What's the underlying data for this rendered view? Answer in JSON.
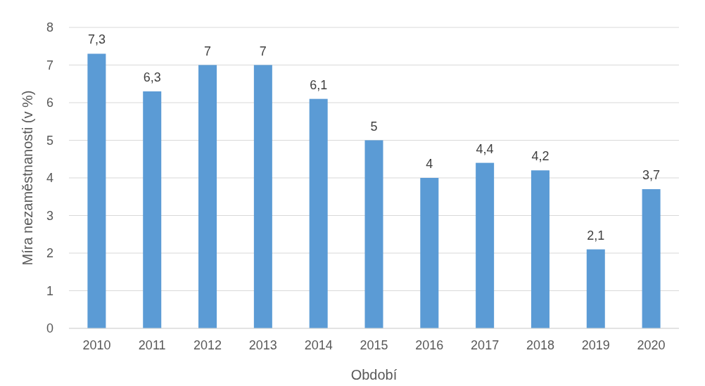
{
  "chart_data": {
    "type": "bar",
    "xlabel": "Období",
    "ylabel": "Míra nezaměstnanosti (v %)",
    "categories": [
      "2010",
      "2011",
      "2012",
      "2013",
      "2014",
      "2015",
      "2016",
      "2017",
      "2018",
      "2019",
      "2020"
    ],
    "values": [
      7.3,
      6.3,
      7,
      7,
      6.1,
      5,
      4,
      4.4,
      4.2,
      2.1,
      3.7
    ],
    "value_labels": [
      "7,3",
      "6,3",
      "7",
      "7",
      "6,1",
      "5",
      "4",
      "4,4",
      "4,2",
      "2,1",
      "3,7"
    ],
    "color": "#5b9bd5",
    "ylim": [
      0,
      8
    ],
    "yticks": [
      0,
      1,
      2,
      3,
      4,
      5,
      6,
      7,
      8
    ],
    "grid": "y"
  }
}
